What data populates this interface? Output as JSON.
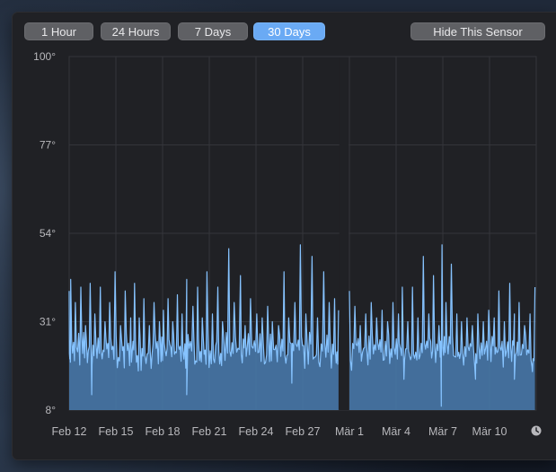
{
  "toolbar": {
    "ranges": [
      "1 Hour",
      "24 Hours",
      "7 Days",
      "30 Days"
    ],
    "selected_index": 3,
    "hide_label": "Hide This Sensor"
  },
  "colors": {
    "fill": "#4a7bb0",
    "line": "#86c3ff",
    "accent": "#6aaaf4",
    "grid": "#34353a"
  },
  "chart_data": {
    "type": "area",
    "y_ticks": [
      "100°",
      "77°",
      "54°",
      "31°",
      "8°"
    ],
    "y_tick_values": [
      100,
      77,
      54,
      31,
      8
    ],
    "ylim": [
      8,
      100
    ],
    "x_tick_labels": [
      "Feb 12",
      "Feb 15",
      "Feb 18",
      "Feb 21",
      "Feb 24",
      "Feb 27",
      "Mär 1",
      "Mär 4",
      "Mär 7",
      "Mär 10"
    ],
    "x_tick_days": [
      0,
      3,
      6,
      9,
      12,
      15,
      18,
      21,
      24,
      27
    ],
    "x_range_days": [
      0,
      30
    ],
    "grid": true,
    "gap_days": [
      17.35,
      17.95
    ],
    "peaks": [
      [
        0.0,
        39
      ],
      [
        0.1,
        42
      ],
      [
        0.4,
        36
      ],
      [
        0.75,
        40
      ],
      [
        1.05,
        30
      ],
      [
        1.35,
        41
      ],
      [
        1.65,
        33
      ],
      [
        2.0,
        40
      ],
      [
        2.3,
        31
      ],
      [
        2.6,
        36
      ],
      [
        2.95,
        44
      ],
      [
        3.3,
        30
      ],
      [
        3.6,
        39
      ],
      [
        3.95,
        32
      ],
      [
        4.2,
        41
      ],
      [
        4.5,
        32
      ],
      [
        4.8,
        37
      ],
      [
        5.15,
        30
      ],
      [
        5.45,
        36
      ],
      [
        5.8,
        31
      ],
      [
        6.05,
        34
      ],
      [
        6.35,
        37
      ],
      [
        6.65,
        31
      ],
      [
        6.95,
        38
      ],
      [
        7.25,
        33
      ],
      [
        7.55,
        42
      ],
      [
        7.95,
        35
      ],
      [
        8.25,
        40
      ],
      [
        8.55,
        32
      ],
      [
        8.85,
        44
      ],
      [
        9.2,
        33
      ],
      [
        9.55,
        40
      ],
      [
        9.85,
        31
      ],
      [
        10.25,
        50
      ],
      [
        10.6,
        36
      ],
      [
        11.0,
        43
      ],
      [
        11.3,
        30
      ],
      [
        11.65,
        37
      ],
      [
        12.05,
        33
      ],
      [
        12.4,
        32
      ],
      [
        12.75,
        35
      ],
      [
        13.05,
        31
      ],
      [
        13.45,
        30
      ],
      [
        13.8,
        44
      ],
      [
        14.1,
        32
      ],
      [
        14.5,
        36
      ],
      [
        14.85,
        51
      ],
      [
        15.2,
        33
      ],
      [
        15.6,
        48
      ],
      [
        15.95,
        32
      ],
      [
        16.35,
        44
      ],
      [
        16.7,
        36
      ],
      [
        17.05,
        37
      ],
      [
        17.3,
        34
      ],
      [
        18.0,
        39
      ],
      [
        18.35,
        35
      ],
      [
        18.7,
        30
      ],
      [
        19.05,
        33
      ],
      [
        19.4,
        36
      ],
      [
        19.75,
        32
      ],
      [
        20.1,
        34
      ],
      [
        20.45,
        31
      ],
      [
        20.8,
        36
      ],
      [
        21.15,
        33
      ],
      [
        21.4,
        40
      ],
      [
        21.75,
        31
      ],
      [
        22.05,
        40
      ],
      [
        22.4,
        32
      ],
      [
        22.75,
        48
      ],
      [
        23.1,
        33
      ],
      [
        23.4,
        43
      ],
      [
        23.75,
        30
      ],
      [
        23.95,
        51
      ],
      [
        24.2,
        36
      ],
      [
        24.55,
        46
      ],
      [
        24.9,
        33
      ],
      [
        25.2,
        31
      ],
      [
        25.55,
        32
      ],
      [
        25.9,
        30
      ],
      [
        26.25,
        33
      ],
      [
        26.6,
        31
      ],
      [
        26.95,
        34
      ],
      [
        27.3,
        32
      ],
      [
        27.6,
        39
      ],
      [
        27.95,
        31
      ],
      [
        28.3,
        41
      ],
      [
        28.6,
        33
      ],
      [
        28.9,
        36
      ],
      [
        29.25,
        30
      ],
      [
        29.6,
        33
      ],
      [
        29.92,
        40
      ]
    ],
    "floor_range": [
      20,
      26
    ],
    "dips": [
      [
        1.45,
        12
      ],
      [
        7.55,
        12
      ],
      [
        14.3,
        15
      ],
      [
        21.5,
        16
      ],
      [
        23.9,
        9
      ],
      [
        26.1,
        16
      ],
      [
        28.6,
        16
      ],
      [
        29.75,
        18
      ]
    ]
  }
}
